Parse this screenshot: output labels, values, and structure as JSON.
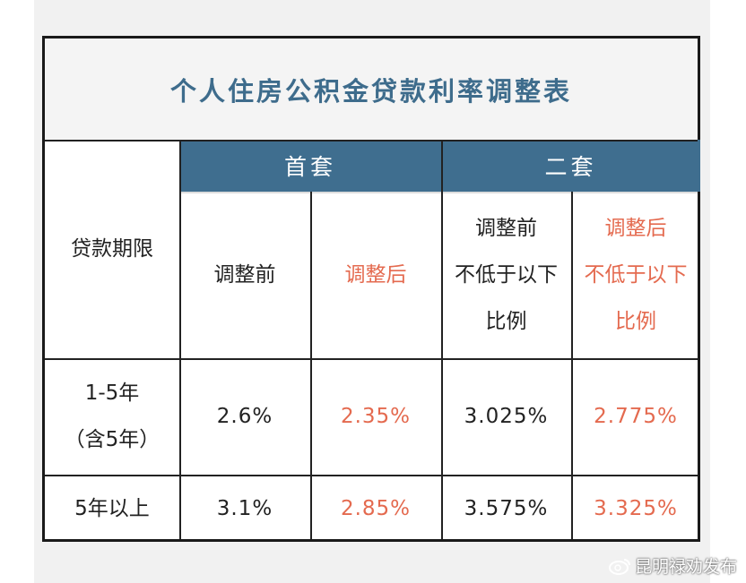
{
  "title": "个人住房公积金贷款利率调整表",
  "table": {
    "groups": [
      "首套",
      "二套"
    ],
    "row_header": "贷款期限",
    "columns": [
      [
        "调整前"
      ],
      [
        "调整后"
      ],
      [
        "调整前",
        "不低于以下",
        "比例"
      ],
      [
        "调整后",
        "不低于以下",
        "比例"
      ]
    ],
    "rows": [
      {
        "term": [
          "1-5年",
          "（含5年）"
        ],
        "values": [
          "2.6%",
          "2.35%",
          "3.025%",
          "2.775%"
        ]
      },
      {
        "term": [
          "5年以上"
        ],
        "values": [
          "3.1%",
          "2.85%",
          "3.575%",
          "3.325%"
        ]
      }
    ]
  },
  "watermark": "昆明禄劝发布"
}
